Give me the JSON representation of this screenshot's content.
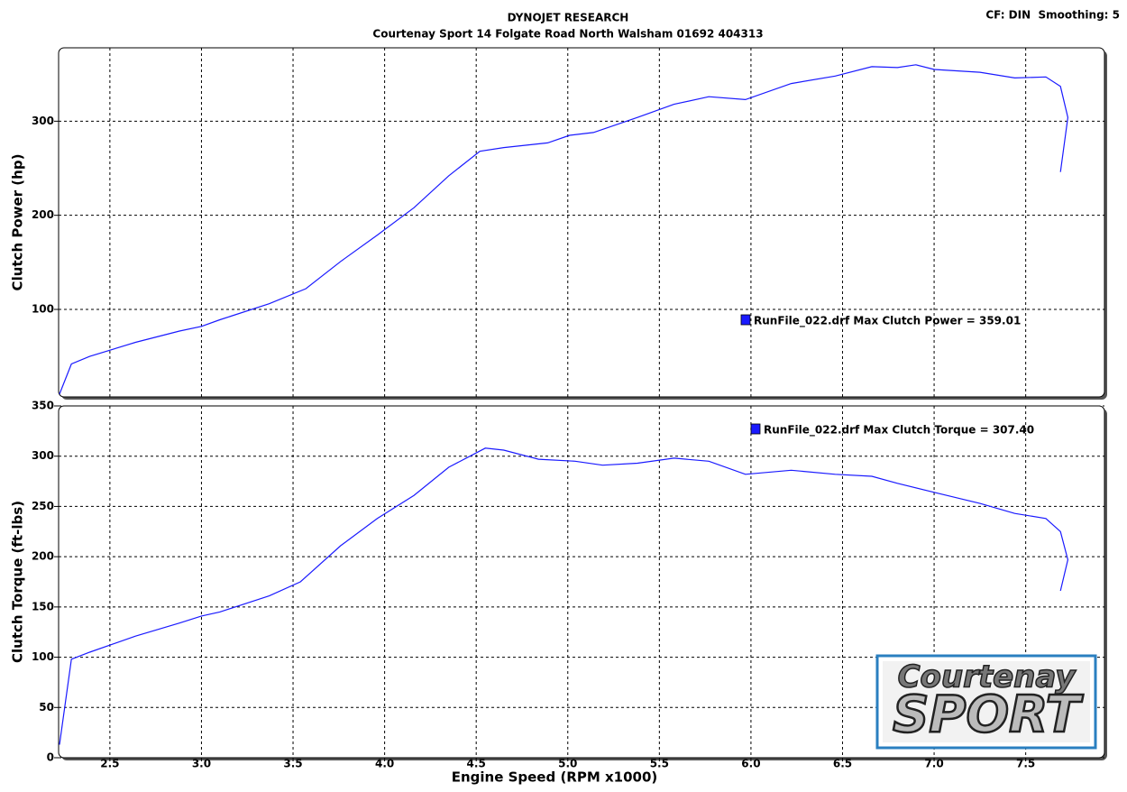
{
  "header": {
    "title": "DYNOJET RESEARCH",
    "subtitle": "Courtenay Sport 14 Folgate Road North Walsham 01692 404313",
    "settings": "CF: DIN  Smoothing: 5"
  },
  "logo": {
    "line1": "Courtenay",
    "line2": "SPORT"
  },
  "chart_data": [
    {
      "type": "line",
      "y_label": "Clutch Power (hp)",
      "x": [
        2.225,
        2.29,
        2.39,
        2.64,
        2.88,
        3.0,
        3.1,
        3.37,
        3.57,
        3.76,
        3.96,
        4.16,
        4.35,
        4.52,
        4.65,
        4.89,
        5.01,
        5.14,
        5.38,
        5.58,
        5.77,
        5.97,
        6.22,
        6.46,
        6.66,
        6.8,
        6.9,
        7.0,
        7.25,
        7.44,
        7.61,
        7.69,
        7.73,
        7.69
      ],
      "series": [
        {
          "name": "RunFile_022.drf Max Clutch Power = 359.01",
          "color": "#1a1aff",
          "values": [
            10,
            42,
            50,
            65,
            77,
            82,
            89,
            106,
            122,
            151,
            179,
            208,
            242,
            268,
            272,
            277,
            285,
            288,
            304,
            318,
            326,
            323,
            340,
            348,
            358,
            357,
            360,
            355,
            352,
            346,
            347,
            337,
            304,
            246
          ]
        }
      ],
      "xlim": [
        2.22,
        7.93
      ],
      "xticks": [
        2.5,
        3,
        3.5,
        4,
        4.5,
        5,
        5.5,
        6,
        6.5,
        7,
        7.5
      ],
      "ylim": [
        7,
        378
      ],
      "yticks": [
        100,
        200,
        300
      ],
      "grid": true
    },
    {
      "type": "line",
      "y_label": "Clutch Torque (ft-lbs)",
      "x_label": "Engine Speed (RPM x1000)",
      "x": [
        2.225,
        2.29,
        2.39,
        2.64,
        2.88,
        3.0,
        3.1,
        3.37,
        3.54,
        3.76,
        3.96,
        4.16,
        4.35,
        4.55,
        4.65,
        4.84,
        5.04,
        5.19,
        5.38,
        5.58,
        5.77,
        5.97,
        6.22,
        6.46,
        6.66,
        6.8,
        7.0,
        7.25,
        7.44,
        7.61,
        7.69,
        7.73,
        7.69
      ],
      "series": [
        {
          "name": "RunFile_022.drf Max Clutch Torque = 307.40",
          "color": "#1a1aff",
          "values": [
            13,
            98,
            105,
            121,
            134,
            141,
            145,
            161,
            175,
            211,
            238,
            261,
            289,
            308,
            306,
            297,
            295,
            291,
            293,
            298,
            295,
            282,
            286,
            282,
            280,
            273,
            264,
            253,
            243,
            238,
            225,
            197,
            166
          ]
        }
      ],
      "xlim": [
        2.22,
        7.93
      ],
      "xticks": [
        2.5,
        {
          "value": 3,
          "label": "3.0"
        },
        3.5,
        {
          "value": 4,
          "label": "4.0"
        },
        4.5,
        {
          "value": 5,
          "label": "5.0"
        },
        5.5,
        {
          "value": 6,
          "label": "6.0"
        },
        6.5,
        {
          "value": 7,
          "label": "7.0"
        },
        7.5
      ],
      "ylim": [
        0,
        350
      ],
      "yticks": [
        0,
        50,
        100,
        150,
        200,
        250,
        300,
        350
      ],
      "grid": true
    }
  ]
}
